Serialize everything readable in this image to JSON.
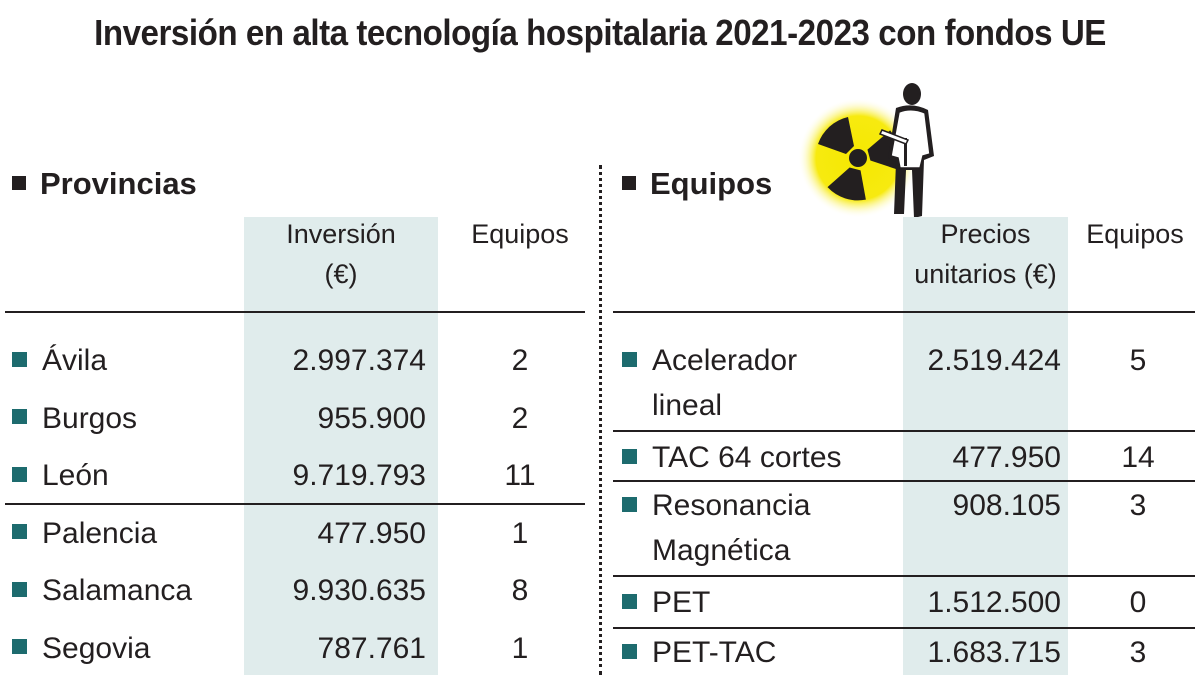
{
  "title": "Inversión en alta tecnología hospitalaria 2021-2023 con fondos UE",
  "colors": {
    "bullet": "#1d6b6e",
    "column_shade": "#e0ecec",
    "radiation_glow": "#f5e800"
  },
  "illustration": {
    "icons": [
      "radiation-symbol-icon",
      "doctor-silhouette-icon"
    ]
  },
  "chart_data": [
    {
      "type": "table",
      "title": "Provincias",
      "columns": [
        "",
        "Inversión (€)",
        "Equipos"
      ],
      "header_lines": {
        "inversion": [
          "Inversión",
          "(€)"
        ],
        "equipos": [
          "Equipos"
        ]
      },
      "rows": [
        {
          "label": "Ávila",
          "inversion": "2.997.374",
          "equipos": "2"
        },
        {
          "label": "Burgos",
          "inversion": "955.900",
          "equipos": "2"
        },
        {
          "label": "León",
          "inversion": "9.719.793",
          "equipos": "11"
        },
        {
          "label": "Palencia",
          "inversion": "477.950",
          "equipos": "1"
        },
        {
          "label": "Salamanca",
          "inversion": "9.930.635",
          "equipos": "8"
        },
        {
          "label": "Segovia",
          "inversion": "787.761",
          "equipos": "1"
        }
      ]
    },
    {
      "type": "table",
      "title": "Equipos",
      "columns": [
        "",
        "Precios unitarios (€)",
        "Equipos"
      ],
      "header_lines": {
        "precio": [
          "Precios",
          "unitarios (€)"
        ],
        "equipos": [
          "Equipos"
        ]
      },
      "rows": [
        {
          "label": [
            "Acelerador",
            "lineal"
          ],
          "precio": "2.519.424",
          "equipos": "5"
        },
        {
          "label": [
            "TAC 64 cortes"
          ],
          "precio": "477.950",
          "equipos": "14"
        },
        {
          "label": [
            "Resonancia",
            "Magnética"
          ],
          "precio": "908.105",
          "equipos": "3"
        },
        {
          "label": [
            "PET"
          ],
          "precio": "1.512.500",
          "equipos": "0"
        },
        {
          "label": [
            "PET-TAC"
          ],
          "precio": "1.683.715",
          "equipos": "3"
        }
      ]
    }
  ]
}
